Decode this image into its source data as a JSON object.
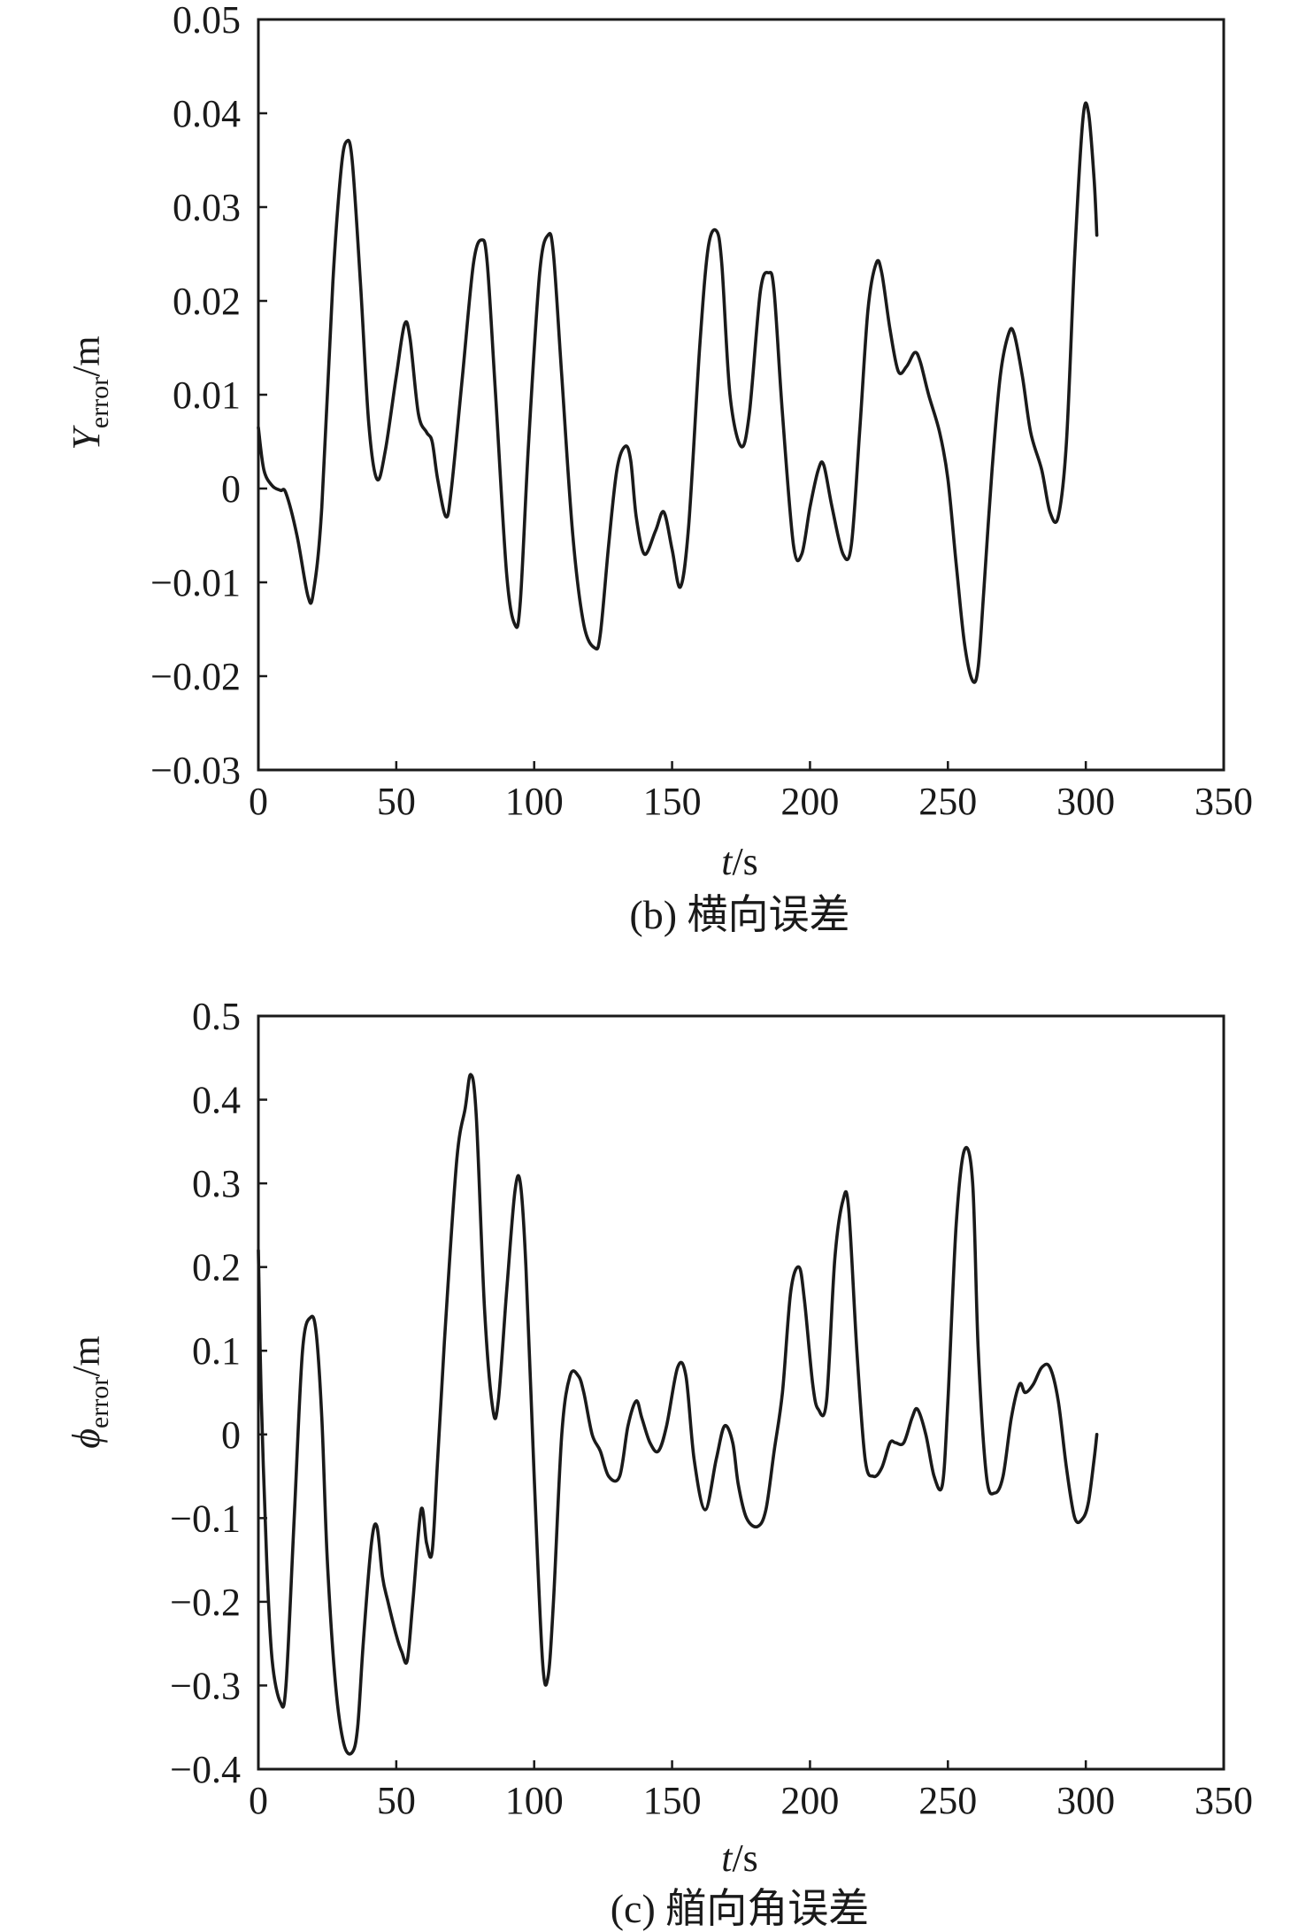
{
  "chart_data": [
    {
      "type": "line",
      "caption": "(b) 横向误差",
      "xlabel": {
        "main": "t",
        "rest": "/s"
      },
      "ylabel": {
        "main": "Y",
        "sub": "error",
        "rest": "/m"
      },
      "xlim": [
        0,
        350
      ],
      "ylim": [
        -0.03,
        0.05
      ],
      "xticks": [
        "0",
        "50",
        "100",
        "150",
        "200",
        "250",
        "300",
        "350"
      ],
      "xtick_values": [
        0,
        50,
        100,
        150,
        200,
        250,
        300,
        350
      ],
      "yticks": [
        "0.05",
        "0.04",
        "0.03",
        "0.02",
        "0.01",
        "0",
        "−0.01",
        "−0.02",
        "−0.03"
      ],
      "ytick_values": [
        0.05,
        0.04,
        0.03,
        0.02,
        0.01,
        0,
        -0.01,
        -0.02,
        -0.03
      ],
      "grid": false,
      "series": [
        {
          "x": [
            0,
            2,
            5,
            8,
            10,
            14,
            18,
            20,
            23,
            27,
            30,
            32,
            34,
            37,
            40,
            43,
            46,
            50,
            53,
            55,
            58,
            61,
            63,
            65,
            68,
            70,
            74,
            78,
            81,
            83,
            86,
            90,
            93,
            95,
            98,
            102,
            105,
            107,
            110,
            114,
            118,
            122,
            124,
            127,
            130,
            133,
            135,
            137,
            140,
            144,
            147,
            150,
            153,
            156,
            160,
            163,
            166,
            168,
            171,
            175,
            178,
            182,
            185,
            187,
            190,
            194,
            197,
            200,
            203,
            205,
            208,
            212,
            215,
            218,
            221,
            224,
            226,
            229,
            232,
            235,
            238,
            240,
            243,
            247,
            250,
            253,
            256,
            259,
            261,
            263,
            266,
            269,
            272,
            274,
            277,
            280,
            284,
            287,
            290,
            293,
            296,
            299,
            301,
            303,
            304
          ],
          "y": [
            0.0065,
            0.002,
            0.0003,
            -0.0002,
            -0.0005,
            -0.005,
            -0.0115,
            -0.011,
            -0.002,
            0.022,
            0.034,
            0.037,
            0.035,
            0.022,
            0.007,
            0.001,
            0.004,
            0.012,
            0.0175,
            0.016,
            0.008,
            0.006,
            0.005,
            0.001,
            -0.003,
            0.0,
            0.012,
            0.024,
            0.0265,
            0.024,
            0.01,
            -0.009,
            -0.0145,
            -0.012,
            0.005,
            0.023,
            0.027,
            0.025,
            0.012,
            -0.005,
            -0.0145,
            -0.017,
            -0.0155,
            -0.006,
            0.002,
            0.0045,
            0.003,
            -0.003,
            -0.007,
            -0.0045,
            -0.0025,
            -0.0065,
            -0.0105,
            -0.004,
            0.015,
            0.0255,
            0.0275,
            0.024,
            0.01,
            0.0045,
            0.008,
            0.021,
            0.023,
            0.021,
            0.008,
            -0.006,
            -0.007,
            -0.002,
            0.002,
            0.0025,
            -0.002,
            -0.007,
            -0.006,
            0.006,
            0.019,
            0.024,
            0.023,
            0.017,
            0.0125,
            0.013,
            0.0145,
            0.0135,
            0.01,
            0.006,
            0.001,
            -0.008,
            -0.0165,
            -0.0205,
            -0.019,
            -0.011,
            0.002,
            0.012,
            0.0165,
            0.0165,
            0.012,
            0.006,
            0.002,
            -0.0025,
            -0.003,
            0.005,
            0.025,
            0.0395,
            0.04,
            0.033,
            0.027
          ]
        }
      ]
    },
    {
      "type": "line",
      "caption": "(c) 艏向角误差",
      "xlabel": {
        "main": "t",
        "rest": "/s"
      },
      "ylabel": {
        "main": "ϕ",
        "sub": "error",
        "rest": "/m"
      },
      "xlim": [
        0,
        350
      ],
      "ylim": [
        -0.4,
        0.5
      ],
      "xticks": [
        "0",
        "50",
        "100",
        "150",
        "200",
        "250",
        "300",
        "350"
      ],
      "xtick_values": [
        0,
        50,
        100,
        150,
        200,
        250,
        300,
        350
      ],
      "yticks": [
        "0.5",
        "0.4",
        "0.3",
        "0.2",
        "0.1",
        "0",
        "−0.1",
        "−0.2",
        "−0.3",
        "−0.4"
      ],
      "ytick_values": [
        0.5,
        0.4,
        0.3,
        0.2,
        0.1,
        0,
        -0.1,
        -0.2,
        -0.3,
        -0.4
      ],
      "grid": false,
      "series": [
        {
          "x": [
            0,
            1,
            3,
            5,
            8,
            10,
            13,
            16,
            19,
            21,
            23,
            25,
            28,
            31,
            34,
            36,
            38,
            41,
            43,
            45,
            47,
            50,
            52,
            54,
            56,
            59,
            61,
            63,
            65,
            68,
            72,
            75,
            77,
            79,
            82,
            85,
            87,
            90,
            93,
            95,
            97,
            100,
            103,
            105,
            107,
            110,
            113,
            116,
            118,
            121,
            124,
            127,
            131,
            134,
            137,
            139,
            142,
            145,
            148,
            152,
            155,
            158,
            162,
            166,
            169,
            172,
            174,
            177,
            181,
            184,
            187,
            190,
            193,
            196,
            198,
            201,
            203,
            206,
            209,
            212,
            214,
            217,
            220,
            223,
            226,
            229,
            231,
            234,
            237,
            239,
            242,
            245,
            248,
            250,
            253,
            256,
            259,
            261,
            264,
            267,
            270,
            273,
            276,
            278,
            281,
            284,
            287,
            290,
            293,
            296,
            299,
            301,
            303,
            304
          ],
          "y": [
            0.22,
            0.05,
            -0.15,
            -0.27,
            -0.32,
            -0.3,
            -0.1,
            0.1,
            0.14,
            0.12,
            0.02,
            -0.15,
            -0.3,
            -0.37,
            -0.38,
            -0.35,
            -0.25,
            -0.13,
            -0.11,
            -0.17,
            -0.2,
            -0.24,
            -0.26,
            -0.27,
            -0.2,
            -0.09,
            -0.13,
            -0.14,
            -0.03,
            0.14,
            0.33,
            0.39,
            0.43,
            0.38,
            0.15,
            0.03,
            0.04,
            0.17,
            0.29,
            0.3,
            0.2,
            -0.05,
            -0.27,
            -0.29,
            -0.2,
            0.0,
            0.07,
            0.07,
            0.05,
            0.0,
            -0.02,
            -0.05,
            -0.05,
            0.01,
            0.04,
            0.02,
            -0.01,
            -0.02,
            0.01,
            0.08,
            0.07,
            -0.03,
            -0.09,
            -0.03,
            0.01,
            -0.01,
            -0.06,
            -0.1,
            -0.11,
            -0.09,
            -0.02,
            0.05,
            0.17,
            0.2,
            0.16,
            0.06,
            0.03,
            0.04,
            0.21,
            0.28,
            0.27,
            0.1,
            -0.03,
            -0.05,
            -0.04,
            -0.01,
            -0.01,
            -0.01,
            0.02,
            0.03,
            0.0,
            -0.05,
            -0.06,
            0.04,
            0.25,
            0.34,
            0.3,
            0.1,
            -0.05,
            -0.07,
            -0.05,
            0.02,
            0.06,
            0.05,
            0.06,
            0.08,
            0.08,
            0.04,
            -0.04,
            -0.1,
            -0.1,
            -0.08,
            -0.03,
            0.0
          ]
        }
      ]
    }
  ]
}
